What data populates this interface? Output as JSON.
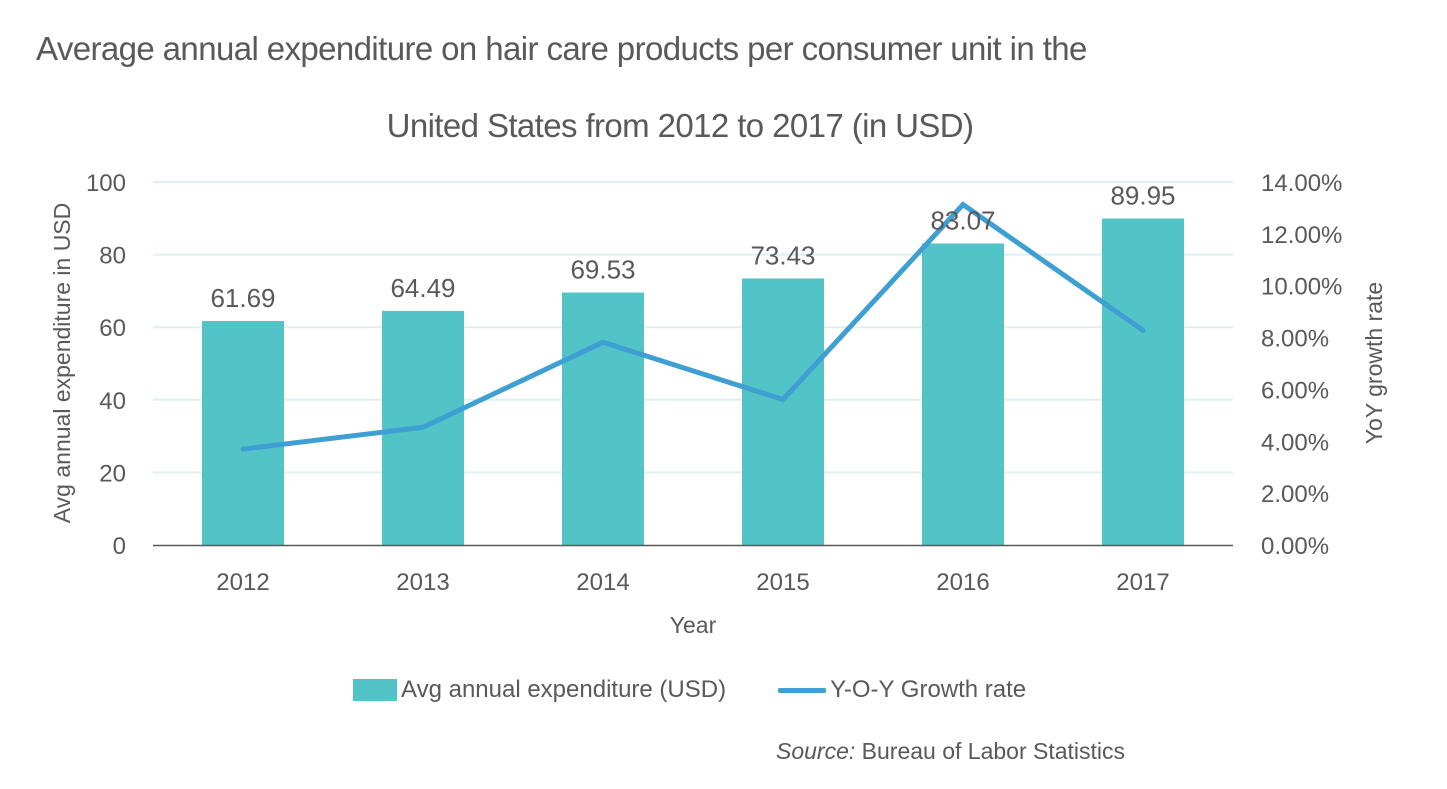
{
  "chart_data": {
    "type": "bar",
    "title_line1": "Average annual expenditure on hair care products per consumer unit in the",
    "title_line2": "United States from 2012 to 2017 (in USD)",
    "xlabel": "Year",
    "ylabel": "Avg annual expenditure in USD",
    "y2label": "YoY growth rate",
    "categories": [
      "2012",
      "2013",
      "2014",
      "2015",
      "2016",
      "2017"
    ],
    "ylim": [
      0,
      100
    ],
    "yticks": [
      0,
      20,
      40,
      60,
      80,
      100
    ],
    "y2lim": [
      0,
      14
    ],
    "y2ticks": [
      "0.00%",
      "2.00%",
      "4.00%",
      "6.00%",
      "8.00%",
      "10.00%",
      "12.00%",
      "14.00%"
    ],
    "grid": true,
    "legend_position": "bottom",
    "series": [
      {
        "name": "Avg annual expenditure (USD)",
        "type": "bar",
        "axis": "left",
        "color": "#52C3C6",
        "values": [
          61.69,
          64.49,
          69.53,
          73.43,
          83.07,
          89.95
        ],
        "labels": [
          "61.69",
          "64.49",
          "69.53",
          "73.43",
          "83.07",
          "89.95"
        ]
      },
      {
        "name": "Y-O-Y Growth rate",
        "type": "line",
        "axis": "right",
        "unit": "%",
        "color": "#3E9FD3",
        "values": [
          3.7,
          4.54,
          7.82,
          5.61,
          13.13,
          8.28
        ]
      }
    ],
    "source_prefix": "Source:",
    "source_text": " Bureau of Labor Statistics"
  }
}
